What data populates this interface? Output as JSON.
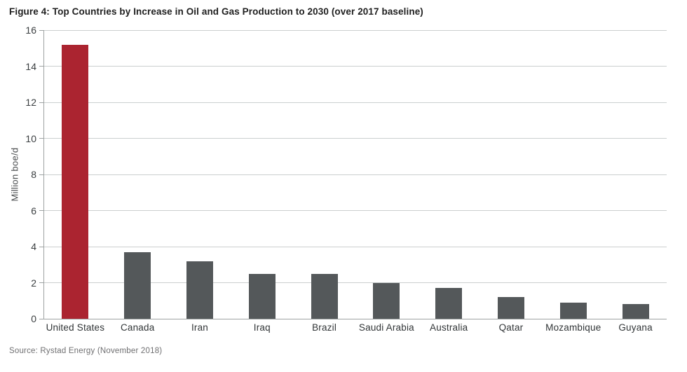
{
  "title": "Figure 4: Top Countries by Increase in Oil and Gas Production to 2030 (over 2017 baseline)",
  "source": "Source: Rystad Energy (November 2018)",
  "colors": {
    "highlight_bar": "#ab2430",
    "default_bar": "#54585a",
    "gridline": "#cbcfcf",
    "axis": "#9ea3a3"
  },
  "chart_data": {
    "type": "bar",
    "categories": [
      "United States",
      "Canada",
      "Iran",
      "Iraq",
      "Brazil",
      "Saudi Arabia",
      "Australia",
      "Qatar",
      "Mozambique",
      "Guyana"
    ],
    "values": [
      15.2,
      3.7,
      3.2,
      2.5,
      2.5,
      2.0,
      1.7,
      1.2,
      0.9,
      0.8
    ],
    "highlight_index": 0,
    "title": "Figure 4: Top Countries by Increase in Oil and Gas Production to 2030 (over 2017 baseline)",
    "xlabel": "",
    "ylabel": "Million boe/d",
    "ylim": [
      0,
      16
    ],
    "ytick_step": 2,
    "ytick_labels": [
      "0",
      "2",
      "4",
      "6",
      "8",
      "10",
      "12",
      "14",
      "16"
    ],
    "grid": true,
    "legend": false
  }
}
